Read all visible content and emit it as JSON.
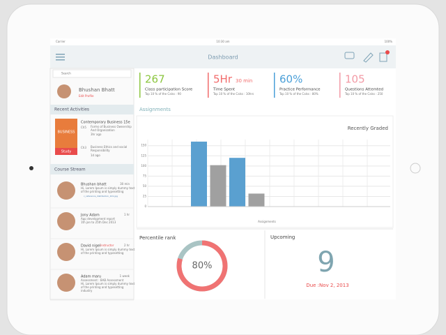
{
  "status_bar": {
    "carrier": "Carrier",
    "time": "10:30 am",
    "battery": "100%"
  },
  "header": {
    "title": "Dashboard"
  },
  "sidebar": {
    "search": "Search",
    "profile": {
      "name": "Bhushan Bhatt",
      "link": "Edit Profile"
    },
    "recent_activities": {
      "title": "Recent Activities",
      "book": "Contemporary Business 15e",
      "cover": "BUSINESS",
      "button": "Study",
      "items": [
        {
          "chapter": "Ch5",
          "text": [
            "Forms of Business Ownership",
            "And Organization"
          ],
          "time": "3hr ago"
        },
        {
          "chapter": "Ch3",
          "text": [
            "Business Ethics and social",
            "Responsibility"
          ],
          "time": "1d ago"
        }
      ]
    },
    "course_stream": {
      "title": "Course Stream",
      "items": [
        {
          "name": "Bhushan bhatt",
          "time": "30 min",
          "lines": [
            "Hi, Lorem Ipsum is simply dummy text",
            "of the printing and typesetting"
          ],
          "attachment": "c_reference_distribution_101.jpg"
        },
        {
          "name": "Jony Adam",
          "time": "1 hr",
          "lines": [
            "App development report",
            "1th jan to 25th Dec 2013"
          ]
        },
        {
          "name": "David nigel",
          "role": "instructor",
          "time": "2 hr",
          "lines": [
            "Hi, Lorem Ipsum is simply dummy text",
            "of the printing and typesetting"
          ]
        },
        {
          "name": "Adam maru",
          "time": "1 week",
          "lines": [
            "Assessment : BAB Assessment",
            "Hi, Lorem Ipsum is simply dummy text",
            "of the printing and typesetting",
            "industry"
          ]
        }
      ]
    }
  },
  "stats": [
    {
      "value": "267",
      "label": "Class participation Score",
      "note": "Top 10 % of the Calss : 90",
      "color": "#8cc63f"
    },
    {
      "value": "5Hr",
      "unit": "30 min",
      "label": "Time Spent",
      "note": "Top 10 % of the Calss : 10hrs",
      "color": "#f26b6b"
    },
    {
      "value": "60%",
      "label": "Practice Performance",
      "note": "Top 10 % of the Calss : 80%",
      "color": "#4a9fd8"
    },
    {
      "value": "105",
      "label": "Questions Attemted",
      "note": "Top 10 % of the Calss : 250",
      "color": "#f29aa5"
    }
  ],
  "assignments": {
    "title": "Assignments",
    "chart": {
      "type": "bar",
      "title": "Recently Graded",
      "x_label": "Assignments",
      "values": [
        160,
        102,
        120,
        32
      ],
      "colors": [
        "#5aa0d0",
        "#a0a0a0",
        "#5aa0d0",
        "#a0a0a0"
      ],
      "ylim": [
        0,
        165
      ],
      "yticks": [
        0,
        25,
        50,
        75,
        100,
        125,
        150
      ]
    }
  },
  "percentile": {
    "title": "Percentile rank",
    "value": 80,
    "value_label": "80%",
    "color": "#f07373",
    "rest_color": "#a9c4c4"
  },
  "upcoming": {
    "title": "Upcoming",
    "count": "9",
    "due": "Due :Nov 2, 2013"
  }
}
